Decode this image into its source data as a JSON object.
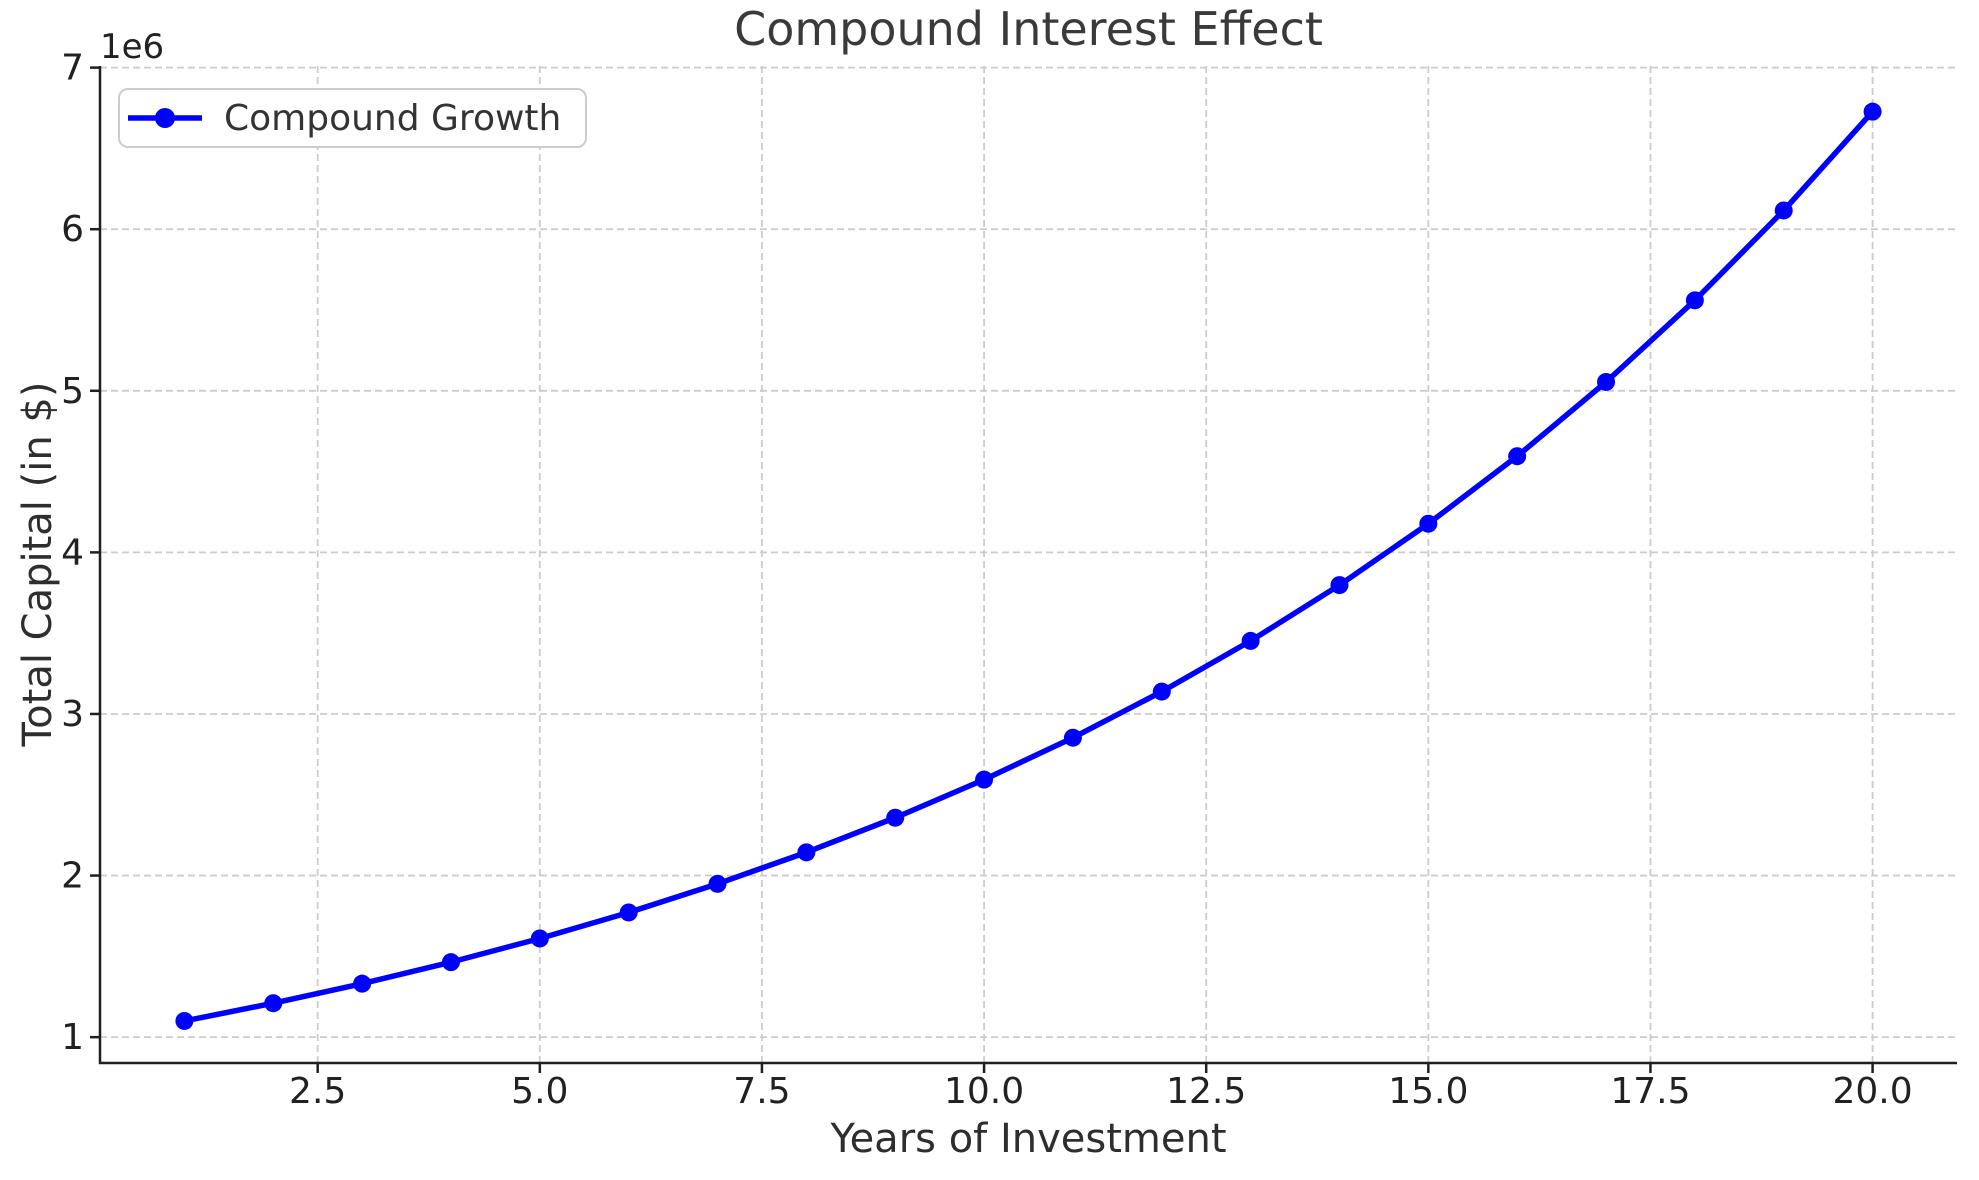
{
  "chart_data": {
    "type": "line",
    "title": "Compound Interest Effect",
    "xlabel": "Years of Investment",
    "ylabel": "Total Capital (in $)",
    "y_axis_offset_text": "1e6",
    "legend_position": "upper left",
    "grid": {
      "visible": true,
      "style": "dashed",
      "color": "#cccccc"
    },
    "x": [
      1,
      2,
      3,
      4,
      5,
      6,
      7,
      8,
      9,
      10,
      11,
      12,
      13,
      14,
      15,
      16,
      17,
      18,
      19,
      20
    ],
    "series": [
      {
        "name": "Compound Growth",
        "color": "#0000ff",
        "marker": "circle",
        "values": [
          1100000,
          1210000,
          1331000,
          1464100,
          1610510,
          1771561,
          1948717,
          2143589,
          2357948,
          2593742,
          2853117,
          3138428,
          3452271,
          3797498,
          4177248,
          4594973,
          5054470,
          5559917,
          6115909,
          6727500
        ]
      }
    ],
    "x_ticks": {
      "values": [
        2.5,
        5.0,
        7.5,
        10.0,
        12.5,
        15.0,
        17.5,
        20.0
      ],
      "labels": [
        "2.5",
        "5.0",
        "7.5",
        "10.0",
        "12.5",
        "15.0",
        "17.5",
        "20.0"
      ]
    },
    "y_ticks": {
      "values": [
        1000000,
        2000000,
        3000000,
        4000000,
        5000000,
        6000000,
        7000000
      ],
      "labels": [
        "1",
        "2",
        "3",
        "4",
        "5",
        "6",
        "7"
      ]
    },
    "xlim": [
      0.05,
      20.95
    ],
    "ylim": [
      840000,
      7010000
    ],
    "colors": {
      "line": "#0000ff",
      "grid": "#cccccc",
      "spine": "#1f1f1f",
      "title_text": "#3a3a3a",
      "label_text": "#2e2e2e",
      "tick_text": "#212121"
    }
  }
}
